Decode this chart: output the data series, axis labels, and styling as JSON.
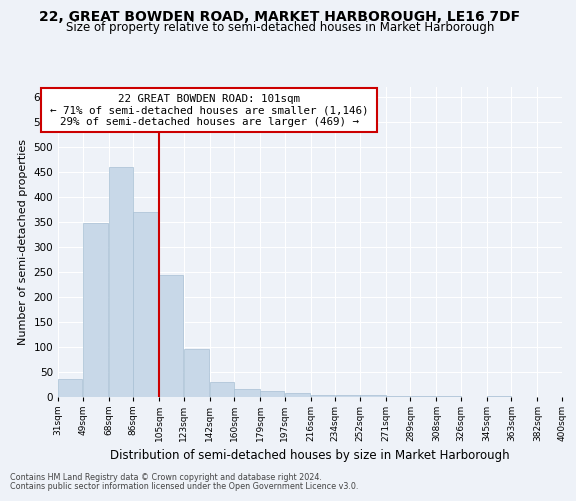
{
  "title": "22, GREAT BOWDEN ROAD, MARKET HARBOROUGH, LE16 7DF",
  "subtitle": "Size of property relative to semi-detached houses in Market Harborough",
  "xlabel": "Distribution of semi-detached houses by size in Market Harborough",
  "ylabel": "Number of semi-detached properties",
  "footnote1": "Contains HM Land Registry data © Crown copyright and database right 2024.",
  "footnote2": "Contains public sector information licensed under the Open Government Licence v3.0.",
  "annotation_title": "22 GREAT BOWDEN ROAD: 101sqm",
  "annotation_line1": "← 71% of semi-detached houses are smaller (1,146)",
  "annotation_line2": "29% of semi-detached houses are larger (469) →",
  "property_size": 101,
  "bar_edges": [
    31,
    49,
    68,
    86,
    105,
    123,
    142,
    160,
    179,
    197,
    216,
    234,
    252,
    271,
    289,
    308,
    326,
    345,
    363,
    382,
    400
  ],
  "bar_values": [
    37,
    348,
    460,
    370,
    245,
    96,
    30,
    17,
    12,
    8,
    5,
    4,
    4,
    3,
    2,
    2,
    1,
    2,
    1,
    1
  ],
  "bar_color": "#c8d8e8",
  "bar_edge_color": "#a8c0d4",
  "vline_color": "#cc0000",
  "vline_x": 105,
  "annotation_box_color": "#ffffff",
  "annotation_box_edge": "#cc0000",
  "ylim": [
    0,
    620
  ],
  "yticks": [
    0,
    50,
    100,
    150,
    200,
    250,
    300,
    350,
    400,
    450,
    500,
    550,
    600
  ],
  "background_color": "#eef2f8",
  "grid_color": "#ffffff",
  "title_fontsize": 10,
  "subtitle_fontsize": 8.5,
  "ylabel_fontsize": 8,
  "xlabel_fontsize": 8.5
}
